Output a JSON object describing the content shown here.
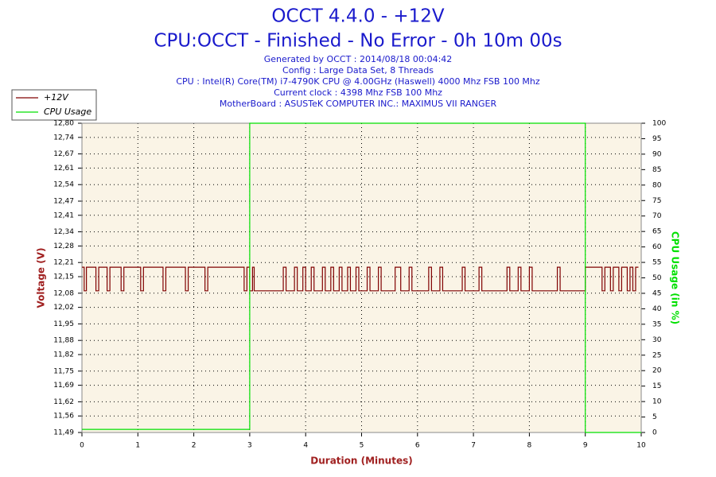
{
  "chart_data": {
    "type": "line",
    "title": "OCCT 4.4.0 - +12V",
    "subtitle": "CPU:OCCT - Finished - No Error - 0h 10m 00s",
    "info": [
      "Generated by OCCT : 2014/08/18 00:04:42",
      "Config : Large Data Set, 8 Threads",
      "CPU : Intel(R) Core(TM) i7-4790K CPU @ 4.00GHz (Haswell) 4000 Mhz FSB 100 Mhz",
      "Current clock : 4398 Mhz FSB 100 Mhz",
      "MotherBoard : ASUSTeK COMPUTER INC.: MAXIMUS VII RANGER"
    ],
    "xlabel": "Duration (Minutes)",
    "ylabel": "Voltage (V)",
    "y2label": "CPU Usage (in %)",
    "xlim": [
      0,
      10
    ],
    "xticks": [
      0,
      1,
      2,
      3,
      4,
      5,
      6,
      7,
      8,
      9,
      10
    ],
    "ylim": [
      11.49,
      12.8
    ],
    "yticks": [
      {
        "value": 11.49,
        "label": "11,49"
      },
      {
        "value": 11.56,
        "label": "11,56"
      },
      {
        "value": 11.62,
        "label": "11,62"
      },
      {
        "value": 11.69,
        "label": "11,69"
      },
      {
        "value": 11.75,
        "label": "11,75"
      },
      {
        "value": 11.82,
        "label": "11,82"
      },
      {
        "value": 11.88,
        "label": "11,88"
      },
      {
        "value": 11.95,
        "label": "11,95"
      },
      {
        "value": 12.02,
        "label": "12,02"
      },
      {
        "value": 12.08,
        "label": "12,08"
      },
      {
        "value": 12.15,
        "label": "12,15"
      },
      {
        "value": 12.21,
        "label": "12,21"
      },
      {
        "value": 12.28,
        "label": "12,28"
      },
      {
        "value": 12.34,
        "label": "12,34"
      },
      {
        "value": 12.41,
        "label": "12,41"
      },
      {
        "value": 12.47,
        "label": "12,47"
      },
      {
        "value": 12.54,
        "label": "12,54"
      },
      {
        "value": 12.61,
        "label": "12,61"
      },
      {
        "value": 12.67,
        "label": "12,67"
      },
      {
        "value": 12.74,
        "label": "12,74"
      },
      {
        "value": 12.8,
        "label": "12,80"
      }
    ],
    "y2lim": [
      0,
      100
    ],
    "y2ticks": [
      0,
      5,
      10,
      15,
      20,
      25,
      30,
      35,
      40,
      45,
      50,
      55,
      60,
      65,
      70,
      75,
      80,
      85,
      90,
      95,
      100
    ],
    "grid": true,
    "legend": "top-left",
    "series": [
      {
        "name": "+12V",
        "color": "#800000",
        "x": [
          0,
          0.04,
          0.04,
          0.08,
          0.08,
          0.25,
          0.25,
          0.3,
          0.3,
          0.45,
          0.45,
          0.5,
          0.5,
          0.7,
          0.7,
          0.75,
          0.75,
          1.05,
          1.05,
          1.1,
          1.1,
          1.45,
          1.45,
          1.5,
          1.5,
          1.85,
          1.85,
          1.9,
          1.9,
          2.2,
          2.2,
          2.25,
          2.25,
          2.9,
          2.9,
          2.95,
          2.95,
          3,
          3,
          3.05,
          3.05,
          3.08,
          3.08,
          3.6,
          3.6,
          3.65,
          3.65,
          3.8,
          3.8,
          3.85,
          3.85,
          3.95,
          3.95,
          4,
          4,
          4.1,
          4.1,
          4.15,
          4.15,
          4.3,
          4.3,
          4.35,
          4.35,
          4.45,
          4.45,
          4.5,
          4.5,
          4.6,
          4.6,
          4.65,
          4.65,
          4.75,
          4.75,
          4.8,
          4.8,
          4.9,
          4.9,
          4.95,
          4.95,
          5.1,
          5.1,
          5.15,
          5.15,
          5.3,
          5.3,
          5.35,
          5.35,
          5.6,
          5.6,
          5.7,
          5.7,
          5.85,
          5.85,
          5.9,
          5.9,
          6.2,
          6.2,
          6.25,
          6.25,
          6.4,
          6.4,
          6.45,
          6.45,
          6.8,
          6.8,
          6.85,
          6.85,
          7.1,
          7.1,
          7.15,
          7.15,
          7.6,
          7.6,
          7.65,
          7.65,
          7.8,
          7.8,
          7.85,
          7.85,
          8,
          8,
          8.05,
          8.05,
          8.5,
          8.5,
          8.55,
          8.55,
          9,
          9,
          9.3,
          9.3,
          9.35,
          9.35,
          9.45,
          9.45,
          9.5,
          9.5,
          9.6,
          9.6,
          9.65,
          9.65,
          9.75,
          9.75,
          9.8,
          9.8,
          9.85,
          9.85,
          9.9,
          9.9,
          9.95
        ],
        "values": [
          12.19,
          12.19,
          12.09,
          12.09,
          12.19,
          12.19,
          12.09,
          12.09,
          12.19,
          12.19,
          12.09,
          12.09,
          12.19,
          12.19,
          12.09,
          12.09,
          12.19,
          12.19,
          12.09,
          12.09,
          12.19,
          12.19,
          12.09,
          12.09,
          12.19,
          12.19,
          12.09,
          12.09,
          12.19,
          12.19,
          12.09,
          12.09,
          12.19,
          12.19,
          12.09,
          12.09,
          12.19,
          12.19,
          12.09,
          12.09,
          12.19,
          12.19,
          12.09,
          12.09,
          12.19,
          12.19,
          12.09,
          12.09,
          12.19,
          12.19,
          12.09,
          12.09,
          12.19,
          12.19,
          12.09,
          12.09,
          12.19,
          12.19,
          12.09,
          12.09,
          12.19,
          12.19,
          12.09,
          12.09,
          12.19,
          12.19,
          12.09,
          12.09,
          12.19,
          12.19,
          12.09,
          12.09,
          12.19,
          12.19,
          12.09,
          12.09,
          12.19,
          12.19,
          12.09,
          12.09,
          12.19,
          12.19,
          12.09,
          12.09,
          12.19,
          12.19,
          12.09,
          12.09,
          12.19,
          12.19,
          12.09,
          12.09,
          12.19,
          12.19,
          12.09,
          12.09,
          12.19,
          12.19,
          12.09,
          12.09,
          12.19,
          12.19,
          12.09,
          12.09,
          12.19,
          12.19,
          12.09,
          12.09,
          12.19,
          12.19,
          12.09,
          12.09,
          12.19,
          12.19,
          12.09,
          12.09,
          12.19,
          12.19,
          12.09,
          12.09,
          12.19,
          12.19,
          12.09,
          12.09,
          12.19,
          12.19,
          12.09,
          12.09,
          12.19,
          12.19,
          12.09,
          12.09,
          12.19,
          12.19,
          12.09,
          12.09,
          12.19,
          12.19,
          12.09,
          12.09,
          12.19,
          12.19,
          12.09,
          12.09,
          12.19,
          12.19,
          12.09,
          12.09,
          12.19,
          12.19
        ]
      },
      {
        "name": "CPU Usage",
        "color": "#00e000",
        "axis": "y2",
        "x": [
          0,
          3,
          3,
          9,
          9,
          10
        ],
        "values": [
          1,
          1,
          100,
          100,
          0,
          0
        ]
      }
    ]
  }
}
